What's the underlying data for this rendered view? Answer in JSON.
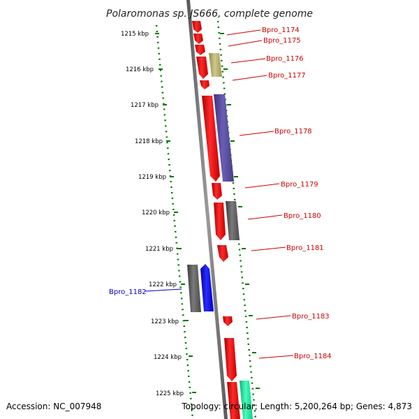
{
  "title": "Polaromonas sp. JS666, complete genome",
  "footer": {
    "accession": "Accession: NC_007948",
    "topology": "Topology: circular; Length: 5,200,264 bp; Genes: 4,873"
  },
  "ticks": [
    "1215 kbp",
    "1216 kbp",
    "1217 kbp",
    "1218 kbp",
    "1219 kbp",
    "1220 kbp",
    "1221 kbp",
    "1222 kbp",
    "1223 kbp",
    "1224 kbp",
    "1225 kbp"
  ],
  "gene_labels": [
    "Bpro_1174",
    "Bpro_1175",
    "Bpro_1176",
    "Bpro_1177",
    "Bpro_1178",
    "Bpro_1179",
    "Bpro_1180",
    "Bpro_1181",
    "Bpro_1182",
    "Bpro_1183",
    "Bpro_1184"
  ],
  "colors": {
    "forward_gene": "#ff0000",
    "reverse_gene": "#0000ff",
    "olive_gene": "#b8b070",
    "purple_gene": "#5a4e9c",
    "gray_gene": "#666666",
    "teal_gene": "#22e8a0",
    "tick_dots": "#007700",
    "label_red": "#cc0000",
    "label_blue": "#0000cc"
  }
}
